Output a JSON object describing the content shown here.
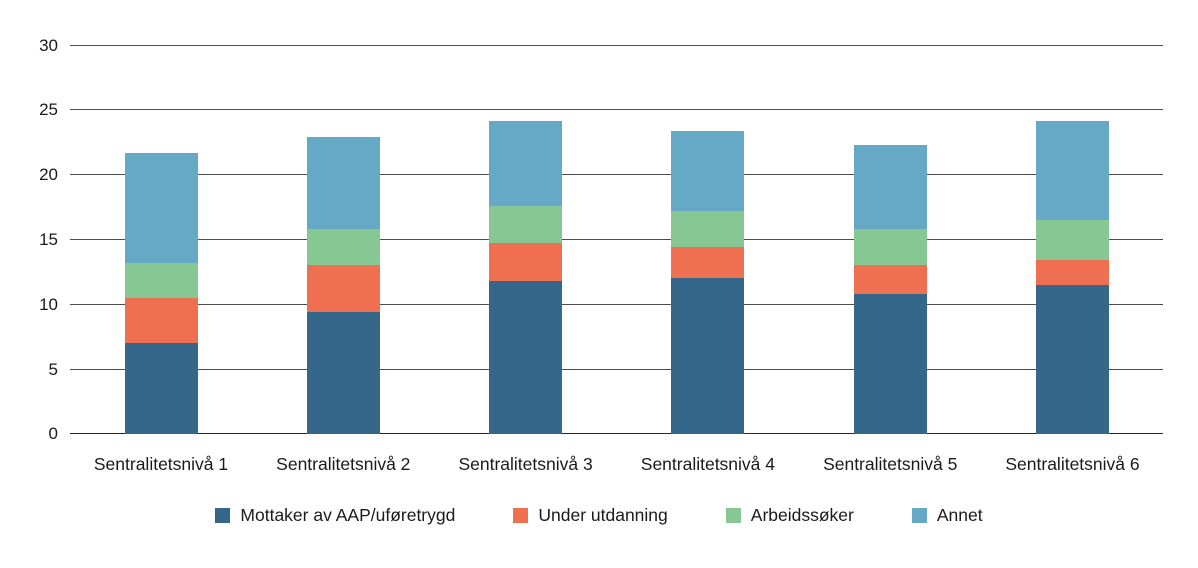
{
  "chart_data": {
    "type": "bar",
    "variant": "stacked-vertical",
    "title": "",
    "xlabel": "",
    "ylabel": "",
    "categories": [
      "Sentralitetsnivå 1",
      "Sentralitetsnivå 2",
      "Sentralitetsnivå 3",
      "Sentralitetsnivå 4",
      "Sentralitetsnivå 5",
      "Sentralitetsnivå 6"
    ],
    "series": [
      {
        "name": "Mottaker av AAP/uføretrygd",
        "color": "#35678A",
        "values": [
          7.0,
          9.4,
          11.8,
          12.0,
          10.8,
          11.5
        ]
      },
      {
        "name": "Under utdanning",
        "color": "#EE7051",
        "values": [
          3.5,
          3.6,
          2.9,
          2.4,
          2.2,
          1.9
        ]
      },
      {
        "name": "Arbeidssøker",
        "color": "#87C794",
        "values": [
          2.7,
          2.8,
          2.9,
          2.8,
          2.8,
          3.1
        ]
      },
      {
        "name": "Annet",
        "color": "#65A9C7",
        "values": [
          8.5,
          7.1,
          6.5,
          6.2,
          6.5,
          7.6
        ]
      }
    ],
    "stack_totals": [
      21.7,
      22.9,
      24.1,
      23.4,
      22.3,
      24.1
    ],
    "y_ticks": [
      0,
      5,
      10,
      15,
      20,
      25,
      30
    ],
    "ylim": [
      0,
      30
    ],
    "grid": true,
    "legend_position": "bottom"
  },
  "colors": {
    "background": "#ffffff",
    "gridline": "#4d4d4d",
    "axis_line": "#262626",
    "text": "#1a1a1a"
  }
}
